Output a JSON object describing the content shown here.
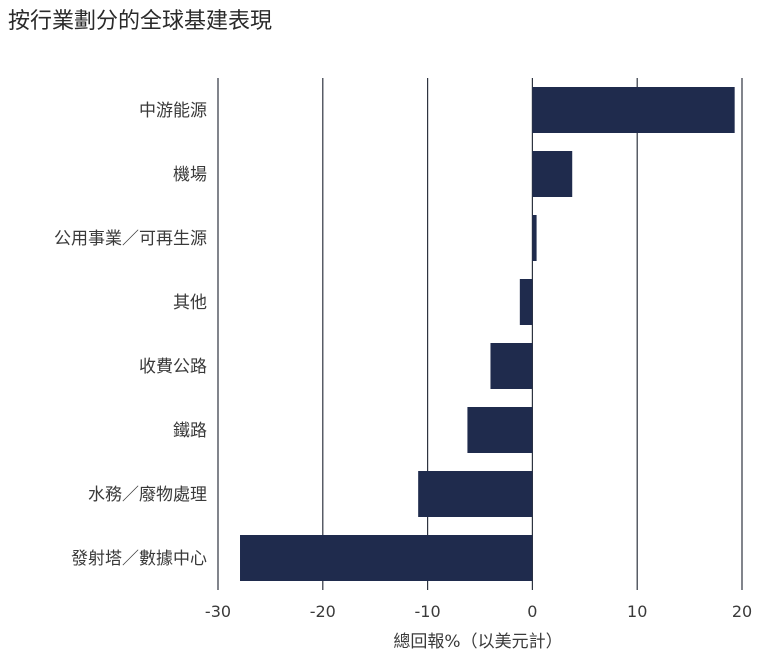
{
  "chart_data": {
    "type": "bar",
    "orientation": "horizontal",
    "title": "按行業劃分的全球基建表現",
    "xlabel": "總回報%（以美元計）",
    "ylabel": "",
    "categories": [
      "中游能源",
      "機場",
      "公用事業／可再生源",
      "其他",
      "收費公路",
      "鐵路",
      "水務／廢物處理",
      "發射塔／數據中心"
    ],
    "values": [
      19.3,
      3.8,
      0.4,
      -1.2,
      -4.0,
      -6.2,
      -10.9,
      -27.9
    ],
    "xlim": [
      -30,
      20
    ],
    "xticks": [
      -30,
      -20,
      -10,
      0,
      10,
      20
    ],
    "xtick_labels": [
      "-30",
      "-20",
      "-10",
      "0",
      "10",
      "20"
    ],
    "grid": "vertical",
    "bar_color": "#1f2b4d",
    "grid_color": "#2e3440"
  }
}
